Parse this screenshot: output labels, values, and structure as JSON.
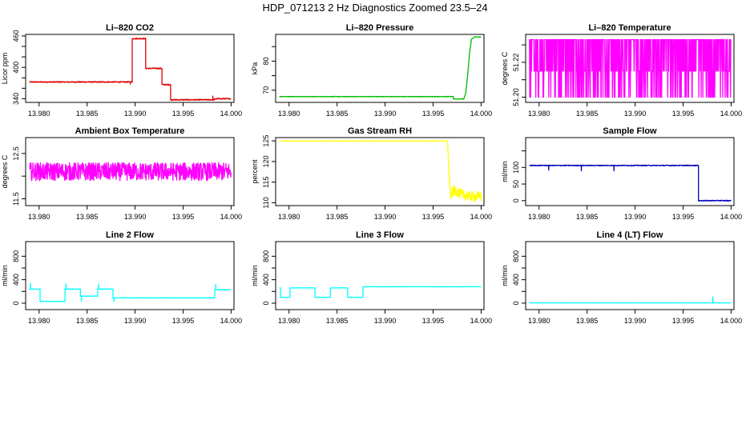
{
  "figure_title": "HDP_071213  2 Hz Diagnostics Zoomed 23.5–24",
  "chart_data": [
    {
      "type": "line",
      "title": "Li–820 CO2",
      "ylabel": "Licor ppm",
      "xlabel": "",
      "color": "#dd0000",
      "xlim": [
        13.9786,
        14.0003
      ],
      "ylim": [
        333,
        463
      ],
      "x_ticks": [
        "13.980",
        "13.985",
        "13.990",
        "13.995",
        "14.000"
      ],
      "y_ticks": [
        {
          "v": 340,
          "label": "340"
        },
        {
          "v": 360,
          "label": ""
        },
        {
          "v": 380,
          "label": ""
        },
        {
          "v": 400,
          "label": "400"
        },
        {
          "v": 420,
          "label": ""
        },
        {
          "v": 440,
          "label": ""
        },
        {
          "v": 460,
          "label": "460"
        }
      ],
      "segments": [
        [
          13.979,
          13.9897,
          372
        ],
        [
          13.9897,
          13.9911,
          455
        ],
        [
          13.9911,
          13.9928,
          398
        ],
        [
          13.9928,
          13.9937,
          367
        ],
        [
          13.9937,
          13.9983,
          338
        ],
        [
          13.9983,
          14.0,
          340
        ]
      ],
      "noise": 1,
      "spikes": [
        {
          "x": 13.9895,
          "y": 368
        },
        {
          "x": 13.9981,
          "y": 345
        }
      ]
    },
    {
      "type": "line",
      "title": "Li–820 Pressure",
      "ylabel": "kPa",
      "xlabel": "",
      "color": "#00bb00",
      "xlim": [
        13.9786,
        14.0003
      ],
      "ylim": [
        65.8,
        89.2
      ],
      "x_ticks": [
        "13.980",
        "13.985",
        "13.990",
        "13.995",
        "14.000"
      ],
      "y_ticks": [
        {
          "v": 70,
          "label": "70"
        },
        {
          "v": 75,
          "label": ""
        },
        {
          "v": 80,
          "label": "80"
        },
        {
          "v": 85,
          "label": ""
        }
      ],
      "segments": [
        [
          13.979,
          13.9971,
          67.8
        ],
        [
          13.9971,
          13.9982,
          67.0
        ]
      ],
      "noise": 0.08,
      "ramp": [
        [
          13.9982,
          67.0
        ],
        [
          13.9984,
          69
        ],
        [
          13.9986,
          75
        ],
        [
          13.9988,
          83
        ],
        [
          13.999,
          87.5
        ],
        [
          13.9993,
          88.3
        ],
        [
          14.0,
          88.3
        ]
      ],
      "spikes": []
    },
    {
      "type": "line",
      "title": "Li–820 Temperature",
      "ylabel": "degrees C",
      "xlabel": "",
      "color": "#ff00ff",
      "xlim": [
        13.9786,
        14.0003
      ],
      "ylim": [
        51.197,
        51.236
      ],
      "x_ticks": [
        "13.980",
        "13.985",
        "13.990",
        "13.995",
        "14.000"
      ],
      "y_ticks": [
        {
          "v": 51.2,
          "label": "51.20"
        },
        {
          "v": 51.21,
          "label": ""
        },
        {
          "v": 51.22,
          "label": "51.22"
        },
        {
          "v": 51.23,
          "label": ""
        }
      ],
      "levels": [
        51.2,
        51.215,
        51.233
      ],
      "segments": [],
      "noise": 0,
      "spikes": []
    },
    {
      "type": "line",
      "title": "Ambient Box Temperature",
      "ylabel": "degrees C",
      "xlabel": "",
      "color": "#ff00ff",
      "xlim": [
        13.9786,
        14.0003
      ],
      "ylim": [
        11.35,
        12.85
      ],
      "x_ticks": [
        "13.980",
        "13.985",
        "13.990",
        "13.995",
        "14.000"
      ],
      "y_ticks": [
        {
          "v": 11.5,
          "label": "11.5"
        },
        {
          "v": 12.0,
          "label": ""
        },
        {
          "v": 12.5,
          "label": "12.5"
        }
      ],
      "segments": [
        [
          13.979,
          14.0,
          12.1
        ]
      ],
      "noise": 0.2,
      "spikes": []
    },
    {
      "type": "line",
      "title": "Gas Stream RH",
      "ylabel": "percent",
      "xlabel": "",
      "color": "#ffff00",
      "xlim": [
        13.9786,
        14.0003
      ],
      "ylim": [
        109.3,
        125.8
      ],
      "x_ticks": [
        "13.980",
        "13.985",
        "13.990",
        "13.995",
        "14.000"
      ],
      "y_ticks": [
        {
          "v": 110,
          "label": "110"
        },
        {
          "v": 115,
          "label": "115"
        },
        {
          "v": 120,
          "label": "120"
        },
        {
          "v": 125,
          "label": "125"
        }
      ],
      "segments": [
        [
          13.979,
          13.9965,
          125
        ]
      ],
      "noise": 0.03,
      "ramp": [
        [
          13.9965,
          125
        ],
        [
          13.99665,
          118
        ],
        [
          13.9968,
          112
        ],
        [
          13.9972,
          113
        ],
        [
          13.998,
          112
        ],
        [
          13.999,
          111.5
        ],
        [
          14.0,
          111.5
        ]
      ],
      "spikes": []
    },
    {
      "type": "line",
      "title": "Sample Flow",
      "ylabel": "ml/min",
      "xlabel": "",
      "color": "#0000bb",
      "xlim": [
        13.9786,
        14.0003
      ],
      "ylim": [
        -15,
        190
      ],
      "x_ticks": [
        "13.980",
        "13.985",
        "13.990",
        "13.995",
        "14.000"
      ],
      "y_ticks": [
        {
          "v": 0,
          "label": "0"
        },
        {
          "v": 50,
          "label": "50"
        },
        {
          "v": 100,
          "label": "100"
        },
        {
          "v": 150,
          "label": ""
        }
      ],
      "segments": [
        [
          13.979,
          13.9966,
          106
        ],
        [
          13.9966,
          14.0,
          0
        ]
      ],
      "noise": 1.2,
      "spikes": [
        {
          "x": 13.981,
          "y": 92
        },
        {
          "x": 13.9844,
          "y": 90
        },
        {
          "x": 13.9878,
          "y": 90
        }
      ]
    },
    {
      "type": "line",
      "title": "Line 2 Flow",
      "ylabel": "ml/min",
      "xlabel": "",
      "color": "#00ffff",
      "xlim": [
        13.9786,
        14.0003
      ],
      "ylim": [
        -110,
        1050
      ],
      "x_ticks": [
        "13.980",
        "13.985",
        "13.990",
        "13.995",
        "14.000"
      ],
      "y_ticks": [
        {
          "v": 0,
          "label": "0"
        },
        {
          "v": 200,
          "label": ""
        },
        {
          "v": 400,
          "label": "400"
        },
        {
          "v": 600,
          "label": ""
        },
        {
          "v": 800,
          "label": "800"
        }
      ],
      "segments": [
        [
          13.979,
          13.9801,
          240
        ],
        [
          13.9801,
          13.9827,
          30
        ],
        [
          13.9827,
          13.9843,
          240
        ],
        [
          13.9843,
          13.9861,
          120
        ],
        [
          13.9861,
          13.9877,
          240
        ],
        [
          13.9877,
          13.9983,
          90
        ],
        [
          13.9983,
          14.0,
          230
        ]
      ],
      "noise": 3,
      "spikes": [
        {
          "x": 13.9791,
          "y": 340
        },
        {
          "x": 13.9828,
          "y": 330
        },
        {
          "x": 13.9844,
          "y": 30
        },
        {
          "x": 13.9862,
          "y": 330
        },
        {
          "x": 13.9878,
          "y": 30
        },
        {
          "x": 13.9984,
          "y": 320
        }
      ]
    },
    {
      "type": "line",
      "title": "Line 3 Flow",
      "ylabel": "ml/min",
      "xlabel": "",
      "color": "#00ffff",
      "xlim": [
        13.9786,
        14.0003
      ],
      "ylim": [
        -110,
        1050
      ],
      "x_ticks": [
        "13.980",
        "13.985",
        "13.990",
        "13.995",
        "14.000"
      ],
      "y_ticks": [
        {
          "v": 0,
          "label": "0"
        },
        {
          "v": 200,
          "label": ""
        },
        {
          "v": 400,
          "label": "400"
        },
        {
          "v": 600,
          "label": ""
        },
        {
          "v": 800,
          "label": "800"
        }
      ],
      "segments": [
        [
          13.979,
          13.9791,
          260
        ],
        [
          13.9791,
          13.9801,
          100
        ],
        [
          13.9801,
          13.9827,
          260
        ],
        [
          13.9827,
          13.9843,
          100
        ],
        [
          13.9843,
          13.9861,
          260
        ],
        [
          13.9861,
          13.9877,
          100
        ],
        [
          13.9877,
          14.0,
          280
        ]
      ],
      "noise": 2,
      "spikes": []
    },
    {
      "type": "line",
      "title": "Line 4 (LT) Flow",
      "ylabel": "ml/min",
      "xlabel": "",
      "color": "#00ffff",
      "xlim": [
        13.9786,
        14.0003
      ],
      "ylim": [
        -110,
        1050
      ],
      "x_ticks": [
        "13.980",
        "13.985",
        "13.990",
        "13.995",
        "14.000"
      ],
      "y_ticks": [
        {
          "v": 0,
          "label": "0"
        },
        {
          "v": 200,
          "label": ""
        },
        {
          "v": 400,
          "label": "400"
        },
        {
          "v": 600,
          "label": ""
        },
        {
          "v": 800,
          "label": "800"
        }
      ],
      "segments": [
        [
          13.979,
          14.0,
          5
        ]
      ],
      "noise": 1,
      "spikes": [
        {
          "x": 13.9981,
          "y": 110
        }
      ]
    }
  ]
}
